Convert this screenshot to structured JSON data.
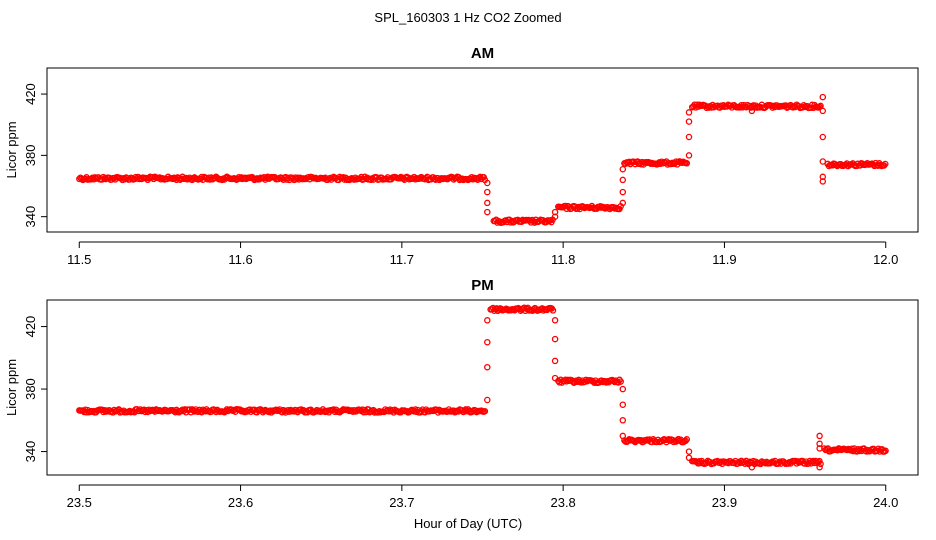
{
  "figure": {
    "title": "SPL_160303  1 Hz CO2 Zoomed",
    "xlabel": "Hour of Day (UTC)",
    "point_color": "#ff0000"
  },
  "chart_data": [
    {
      "type": "scatter",
      "title": "AM",
      "xlabel": "",
      "ylabel": "Licor ppm",
      "xlim": [
        11.5,
        12.0
      ],
      "ylim": [
        330,
        437
      ],
      "xticks": [
        "11.5",
        "11.6",
        "11.7",
        "11.8",
        "11.9",
        "12.0"
      ],
      "xtick_values": [
        11.5,
        11.6,
        11.7,
        11.8,
        11.9,
        12.0
      ],
      "yticks": [
        "340",
        "380",
        "420"
      ],
      "ytick_values": [
        340,
        380,
        420
      ],
      "grid": false,
      "segments": [
        {
          "x": [
            11.5,
            11.752
          ],
          "y": 365
        },
        {
          "x": [
            11.757,
            11.794
          ],
          "y": 337
        },
        {
          "x": [
            11.797,
            11.836
          ],
          "y": 346
        },
        {
          "x": [
            11.838,
            11.877
          ],
          "y": 375
        },
        {
          "x": [
            11.88,
            11.96
          ],
          "y": 412
        },
        {
          "x": [
            11.964,
            12.0
          ],
          "y": 374
        }
      ],
      "transitions": [
        {
          "x": 11.753,
          "y": [
            362,
            356,
            349,
            343
          ]
        },
        {
          "x": 11.795,
          "y": [
            340,
            343
          ]
        },
        {
          "x": 11.837,
          "y": [
            349,
            356,
            364,
            371
          ]
        },
        {
          "x": 11.878,
          "y": [
            380,
            392,
            402,
            408
          ]
        },
        {
          "x": 11.917,
          "y": [
            409
          ]
        },
        {
          "x": 11.961,
          "y": [
            418,
            409,
            392,
            376,
            366,
            363
          ]
        }
      ]
    },
    {
      "type": "scatter",
      "title": "PM",
      "xlabel": "Hour of Day (UTC)",
      "ylabel": "Licor ppm",
      "xlim": [
        23.5,
        24.0
      ],
      "ylim": [
        325,
        437
      ],
      "xticks": [
        "23.5",
        "23.6",
        "23.7",
        "23.8",
        "23.9",
        "24.0"
      ],
      "xtick_values": [
        23.5,
        23.6,
        23.7,
        23.8,
        23.9,
        24.0
      ],
      "yticks": [
        "340",
        "380",
        "420"
      ],
      "ytick_values": [
        340,
        380,
        420
      ],
      "grid": false,
      "segments": [
        {
          "x": [
            23.5,
            23.752
          ],
          "y": 366
        },
        {
          "x": [
            23.755,
            23.794
          ],
          "y": 431
        },
        {
          "x": [
            23.797,
            23.836
          ],
          "y": 385
        },
        {
          "x": [
            23.838,
            23.877
          ],
          "y": 347
        },
        {
          "x": [
            23.88,
            23.96
          ],
          "y": 333
        },
        {
          "x": [
            23.962,
            24.0
          ],
          "y": 341
        }
      ],
      "transitions": [
        {
          "x": 23.753,
          "y": [
            373,
            394,
            410,
            424
          ]
        },
        {
          "x": 23.795,
          "y": [
            424,
            412,
            398,
            387
          ]
        },
        {
          "x": 23.837,
          "y": [
            380,
            370,
            360,
            350
          ]
        },
        {
          "x": 23.878,
          "y": [
            340,
            336
          ]
        },
        {
          "x": 23.917,
          "y": [
            330
          ]
        },
        {
          "x": 23.959,
          "y": [
            330,
            342,
            350,
            345
          ]
        }
      ]
    }
  ]
}
